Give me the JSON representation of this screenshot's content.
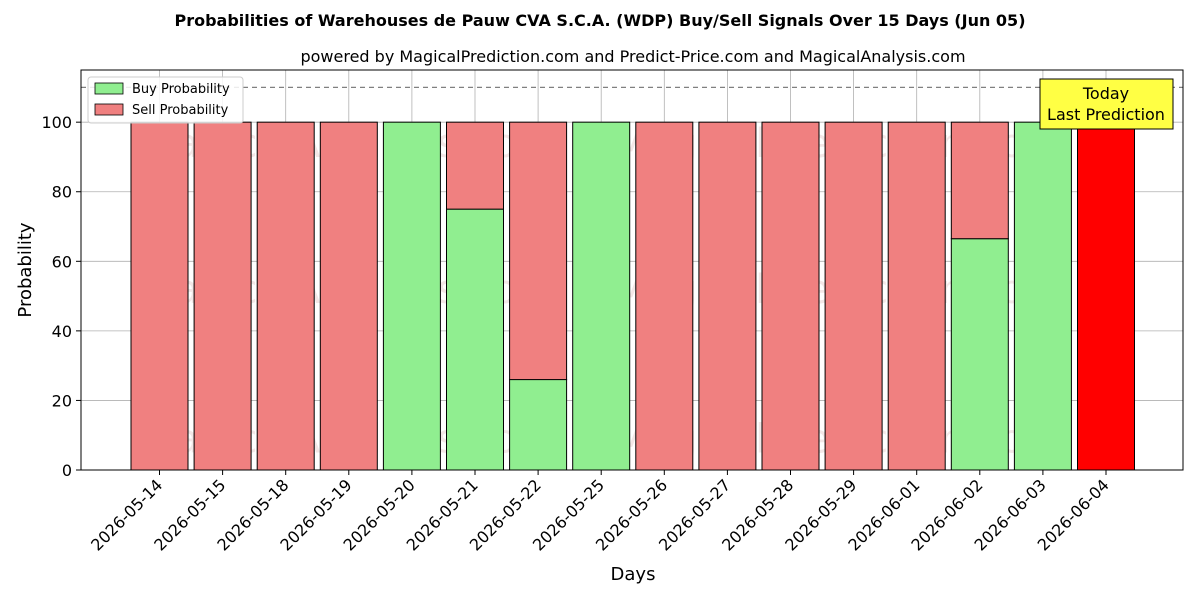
{
  "chart_data": {
    "type": "bar",
    "title": "Probabilities of Warehouses de Pauw CVA S.C.A. (WDP) Buy/Sell Signals Over 15 Days (Jun 05)",
    "subtitle": "powered by MagicalPrediction.com and Predict-Price.com and MagicalAnalysis.com",
    "xlabel": "Days",
    "ylabel": "Probability",
    "ylim": [
      0,
      115
    ],
    "yticks": [
      0,
      20,
      40,
      60,
      80,
      100
    ],
    "grid": true,
    "legend_position": "top-left",
    "threshold_line": 110,
    "categories": [
      "2026-05-14",
      "2026-05-15",
      "2026-05-18",
      "2026-05-19",
      "2026-05-20",
      "2026-05-21",
      "2026-05-22",
      "2026-05-25",
      "2026-05-26",
      "2026-05-27",
      "2026-05-28",
      "2026-05-29",
      "2026-06-01",
      "2026-06-02",
      "2026-06-03",
      "2026-06-04"
    ],
    "series": [
      {
        "name": "Buy Probability",
        "color": "#90EE90",
        "values": [
          0,
          0,
          0,
          0,
          100,
          75,
          26,
          100,
          0,
          0,
          0,
          0,
          0,
          66.5,
          100,
          0
        ]
      },
      {
        "name": "Sell Probability",
        "color": "#F08080",
        "values": [
          100,
          100,
          100,
          100,
          0,
          25,
          74,
          0,
          100,
          100,
          100,
          100,
          100,
          33.5,
          0,
          100
        ]
      }
    ],
    "highlight": {
      "index": 15,
      "color": "#FF0000"
    },
    "annotation": {
      "line1": "Today",
      "line2": "Last Prediction",
      "background": "#FFFF44"
    },
    "watermarks": [
      "MagicalAnalysis.com",
      "MagicalPrediction.com"
    ]
  }
}
